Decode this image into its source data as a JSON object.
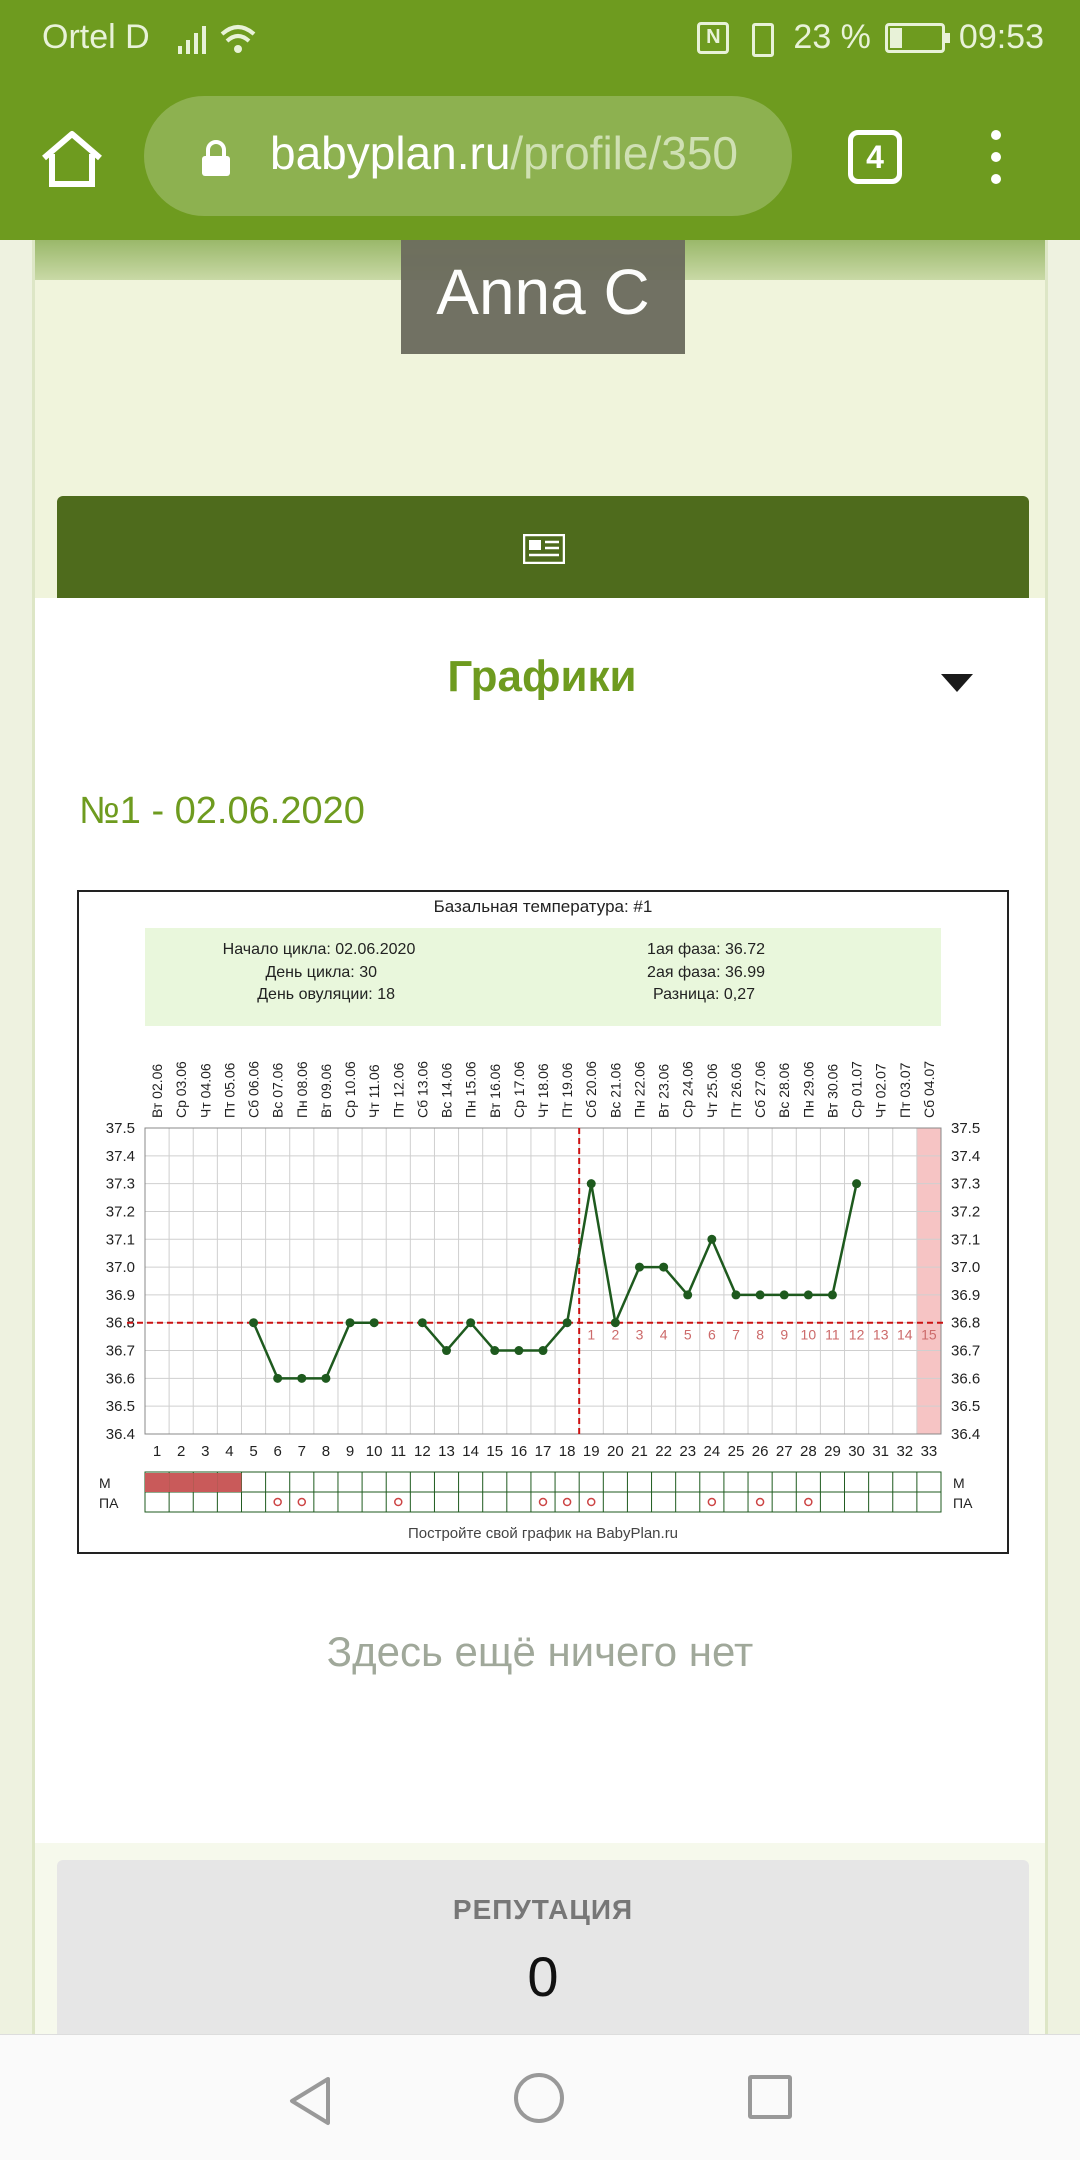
{
  "status_bar": {
    "carrier": "Ortel D",
    "battery_percent": "23 %",
    "time": "09:53",
    "icons": [
      "signal-icon",
      "wifi-icon",
      "nfc-icon",
      "vibrate-icon",
      "battery-charging-icon"
    ]
  },
  "browser": {
    "url_host": "babyplan.ru",
    "url_path": "/profile/350",
    "tab_count": "4",
    "icons": [
      "home-icon",
      "lock-icon",
      "tabs-icon",
      "menu-icon"
    ]
  },
  "profile": {
    "name": "Anna C",
    "news_icon": "newspaper-icon"
  },
  "graphs": {
    "header": "Графики",
    "cycle_title": "№1 - 02.06.2020",
    "empty_message": "Здесь ещё ничего нет"
  },
  "reputation": {
    "title": "РЕПУТАЦИЯ",
    "value": "0"
  },
  "chart_data": {
    "type": "line",
    "title": "Базальная температура: #1",
    "footer": "Постройте свой график на BabyPlan.ru",
    "info": {
      "cycle_start": "Начало цикла: 02.06.2020",
      "cycle_day": "День цикла: 30",
      "ovulation_day": "День овуляции: 18",
      "phase1": "1ая фаза: 36.72",
      "phase2": "2ая фаза: 36.99",
      "difference": "Разница: 0,27"
    },
    "date_labels": [
      "Вт 02.06",
      "Ср 03.06",
      "Чт 04.06",
      "Пт 05.06",
      "Сб 06.06",
      "Вс 07.06",
      "Пн 08.06",
      "Вт 09.06",
      "Ср 10.06",
      "Чт 11.06",
      "Пт 12.06",
      "Сб 13.06",
      "Вс 14.06",
      "Пн 15.06",
      "Вт 16.06",
      "Ср 17.06",
      "Чт 18.06",
      "Пт 19.06",
      "Сб 20.06",
      "Вс 21.06",
      "Пн 22.06",
      "Вт 23.06",
      "Ср 24.06",
      "Чт 25.06",
      "Пт 26.06",
      "Сб 27.06",
      "Вс 28.06",
      "Пн 29.06",
      "Вт 30.06",
      "Ср 01.07",
      "Чт 02.07",
      "Пт 03.07",
      "Сб 04.07"
    ],
    "days": [
      1,
      2,
      3,
      4,
      5,
      6,
      7,
      8,
      9,
      10,
      11,
      12,
      13,
      14,
      15,
      16,
      17,
      18,
      19,
      20,
      21,
      22,
      23,
      24,
      25,
      26,
      27,
      28,
      29,
      30,
      31,
      32,
      33
    ],
    "y_ticks": [
      "37.5",
      "37.4",
      "37.3",
      "37.2",
      "37.1",
      "37.0",
      "36.9",
      "36.8",
      "36.7",
      "36.6",
      "36.5",
      "36.4"
    ],
    "ylim": [
      36.4,
      37.5
    ],
    "temps": [
      null,
      null,
      null,
      null,
      36.8,
      36.6,
      36.6,
      36.6,
      36.8,
      36.8,
      null,
      36.8,
      36.7,
      36.8,
      36.7,
      36.7,
      36.7,
      36.8,
      37.3,
      36.8,
      37.0,
      37.0,
      36.9,
      37.1,
      36.9,
      36.9,
      36.9,
      36.9,
      36.9,
      37.3,
      null,
      null,
      null
    ],
    "coverline": 36.8,
    "ovulation_day": 18,
    "luteal_labels": [
      "1",
      "2",
      "3",
      "4",
      "5",
      "6",
      "7",
      "8",
      "9",
      "10",
      "11",
      "12",
      "13",
      "14",
      "15"
    ],
    "highlight_day": 33,
    "menstruation_days": [
      1,
      2,
      3,
      4
    ],
    "pa_days": [
      6,
      7,
      11,
      17,
      18,
      19,
      24,
      26,
      28
    ],
    "row_labels": {
      "m": "М",
      "pa": "ПА"
    },
    "colors": {
      "line": "#1e5a1e",
      "coverline": "#cc1111",
      "info_bg": "#e9f7dc",
      "grid": "#cfcfcf",
      "menstruation": "#c95a5a",
      "highlight": "#f6c4c4",
      "luteal_label": "#cc6a6a"
    }
  }
}
